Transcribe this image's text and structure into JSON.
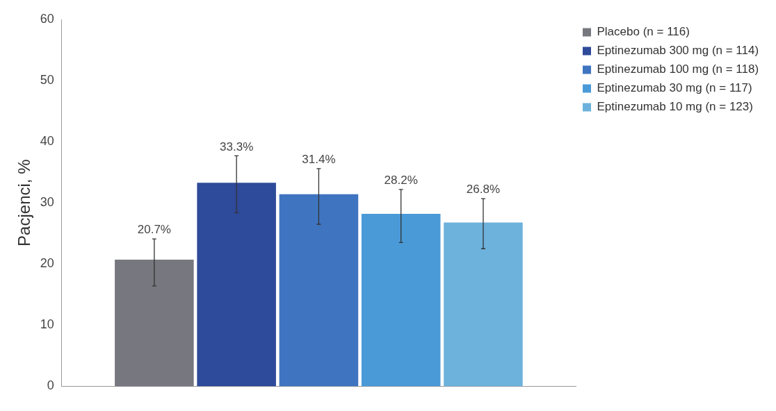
{
  "chart_data": {
    "type": "bar",
    "ylabel": "Pacjenci, %",
    "categories": [
      null
    ],
    "ylim": [
      0,
      60
    ],
    "yticks": [
      0,
      10,
      20,
      30,
      40,
      50,
      60
    ],
    "grid": false,
    "legend": "top right",
    "series": [
      {
        "name": "Placebo (n = 116)",
        "color": "#77777f",
        "values": [
          20.7
        ],
        "errors": [
          [
            16.4,
            24.1
          ]
        ],
        "value_labels": [
          "20.7%"
        ]
      },
      {
        "name": "Eptinezumab 300 mg (n = 114)",
        "color": "#2e4a9a",
        "values": [
          33.3
        ],
        "errors": [
          [
            28.4,
            37.7
          ]
        ],
        "value_labels": [
          "33.3%"
        ]
      },
      {
        "name": "Eptinezumab 100 mg (n = 118)",
        "color": "#3f74c0",
        "values": [
          31.4
        ],
        "errors": [
          [
            26.5,
            35.6
          ]
        ],
        "value_labels": [
          "31.4%"
        ]
      },
      {
        "name": "Eptinezumab 30 mg (n = 117)",
        "color": "#4a9ad8",
        "values": [
          28.2
        ],
        "errors": [
          [
            23.5,
            32.2
          ]
        ],
        "value_labels": [
          "28.2%"
        ]
      },
      {
        "name": "Eptinezumab 10 mg (n = 123)",
        "color": "#6db2dc",
        "values": [
          26.8
        ],
        "errors": [
          [
            22.5,
            30.7
          ]
        ],
        "value_labels": [
          "26.8%"
        ]
      }
    ]
  }
}
